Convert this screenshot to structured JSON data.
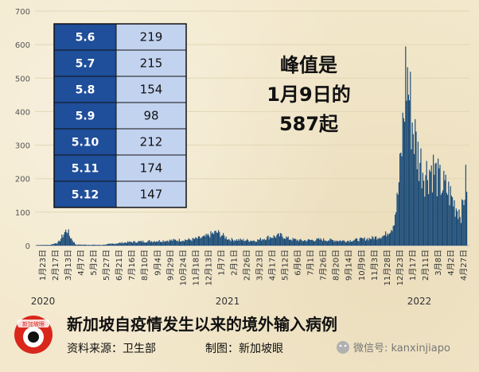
{
  "chart_data": {
    "type": "bar",
    "title": "新加坡自疫情发生以来的境外输入病例",
    "ylim": [
      0,
      700
    ],
    "yticks": [
      0,
      100,
      200,
      300,
      400,
      500,
      600,
      700
    ],
    "x_tick_labels": [
      "1月23日",
      "2月17日",
      "3月13日",
      "4月7日",
      "5月2日",
      "5月27日",
      "6月21日",
      "7月16日",
      "8月10日",
      "9月4日",
      "9月29日",
      "10月24日",
      "11月18日",
      "12月13日",
      "1月7日",
      "2月1日",
      "2月26日",
      "3月23日",
      "4月17日",
      "5月12日",
      "6月6日",
      "7月1日",
      "7月26日",
      "8月20日",
      "9月14日",
      "10月9日",
      "11月3日",
      "11月28日",
      "12月23日",
      "1月17日",
      "2月11日",
      "3月8日",
      "4月2日",
      "4月27日"
    ],
    "years": [
      "2020",
      "2021",
      "2022"
    ],
    "series": [
      {
        "values": [
          {
            "x": "2020-01-23",
            "y": 2
          },
          {
            "x": "2020-02-17",
            "y": 2
          },
          {
            "x": "2020-03-05",
            "y": 10
          },
          {
            "x": "2020-03-13",
            "y": 30
          },
          {
            "x": "2020-03-18",
            "y": 42
          },
          {
            "x": "2020-03-22",
            "y": 48
          },
          {
            "x": "2020-03-26",
            "y": 30
          },
          {
            "x": "2020-04-07",
            "y": 3
          },
          {
            "x": "2020-05-27",
            "y": 2
          },
          {
            "x": "2020-07-16",
            "y": 10
          },
          {
            "x": "2020-08-10",
            "y": 12
          },
          {
            "x": "2020-09-29",
            "y": 15
          },
          {
            "x": "2020-11-18",
            "y": 18
          },
          {
            "x": "2020-12-13",
            "y": 25
          },
          {
            "x": "2020-12-28",
            "y": 35
          },
          {
            "x": "2021-01-07",
            "y": 40
          },
          {
            "x": "2021-01-20",
            "y": 28
          },
          {
            "x": "2021-02-01",
            "y": 18
          },
          {
            "x": "2021-03-23",
            "y": 15
          },
          {
            "x": "2021-04-17",
            "y": 25
          },
          {
            "x": "2021-05-12",
            "y": 30
          },
          {
            "x": "2021-05-27",
            "y": 20
          },
          {
            "x": "2021-06-21",
            "y": 15
          },
          {
            "x": "2021-07-26",
            "y": 18
          },
          {
            "x": "2021-09-14",
            "y": 14
          },
          {
            "x": "2021-10-09",
            "y": 18
          },
          {
            "x": "2021-11-03",
            "y": 22
          },
          {
            "x": "2021-11-28",
            "y": 30
          },
          {
            "x": "2021-12-13",
            "y": 55
          },
          {
            "x": "2021-12-23",
            "y": 150
          },
          {
            "x": "2021-12-30",
            "y": 280
          },
          {
            "x": "2022-01-05",
            "y": 450
          },
          {
            "x": "2022-01-09",
            "y": 587
          },
          {
            "x": "2022-01-14",
            "y": 520
          },
          {
            "x": "2022-01-20",
            "y": 420
          },
          {
            "x": "2022-02-01",
            "y": 300
          },
          {
            "x": "2022-02-15",
            "y": 240
          },
          {
            "x": "2022-03-01",
            "y": 260
          },
          {
            "x": "2022-03-15",
            "y": 210
          },
          {
            "x": "2022-04-01",
            "y": 180
          },
          {
            "x": "2022-04-15",
            "y": 130
          },
          {
            "x": "2022-04-27",
            "y": 110
          },
          {
            "x": "2022-05-06",
            "y": 219
          },
          {
            "x": "2022-05-07",
            "y": 215
          },
          {
            "x": "2022-05-08",
            "y": 154
          },
          {
            "x": "2022-05-09",
            "y": 98
          },
          {
            "x": "2022-05-10",
            "y": 212
          },
          {
            "x": "2022-05-11",
            "y": 174
          },
          {
            "x": "2022-05-12",
            "y": 147
          }
        ]
      }
    ],
    "annotation": [
      "峰值是",
      "1月9日的",
      "587起"
    ],
    "inset_table": [
      {
        "date": "5.6",
        "value": "219"
      },
      {
        "date": "5.7",
        "value": "215"
      },
      {
        "date": "5.8",
        "value": "154"
      },
      {
        "date": "5.9",
        "value": "98"
      },
      {
        "date": "5.10",
        "value": "212"
      },
      {
        "date": "5.11",
        "value": "174"
      },
      {
        "date": "5.12",
        "value": "147"
      }
    ],
    "bar_color": "#1f4e79"
  },
  "footer": {
    "title": "新加坡自疫情发生以来的境外输入病例",
    "source": "资料来源：卫生部",
    "credit": "制图：新加坡眼",
    "wechat": "微信号: kanxinjiapo",
    "logo_text": "新加坡眼"
  }
}
